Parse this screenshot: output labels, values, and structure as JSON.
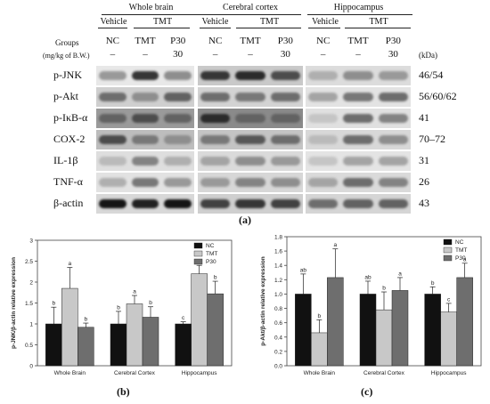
{
  "blot": {
    "regions": [
      "Whole brain",
      "Cerebral cortex",
      "Hippocampus"
    ],
    "vehicle_label": "Vehicle",
    "tmt_label": "TMT",
    "groups_label": "Groups",
    "dose_label": "(mg/kg of B.W.)",
    "lanes": [
      "NC",
      "TMT",
      "P30"
    ],
    "doses": [
      "–",
      "–",
      "30"
    ],
    "kda_label": "(kDa)",
    "proteins": [
      {
        "name": "p-JNK",
        "kda": "46/54"
      },
      {
        "name": "p-Akt",
        "kda": "56/60/62"
      },
      {
        "name": "p-IκB-α",
        "kda": "41"
      },
      {
        "name": "COX-2",
        "kda": "70–72"
      },
      {
        "name": "IL-1β",
        "kda": "31"
      },
      {
        "name": "TNF-α",
        "kda": "26"
      },
      {
        "name": "β-actin",
        "kda": "43"
      }
    ],
    "panel_label": "(a)"
  },
  "chart_data": [
    {
      "type": "bar",
      "panel_label": "(b)",
      "ylabel": "p-JNK/β-actin relative expression",
      "ylim": [
        0,
        3
      ],
      "yticks": [
        "0",
        "0.5",
        "1",
        "1.5",
        "2",
        "2.5",
        "3"
      ],
      "categories": [
        "Whole Brain",
        "Cerebral Cortex",
        "Hippocampus"
      ],
      "series": [
        {
          "name": "NC",
          "color": "#111111",
          "values": [
            1.0,
            1.0,
            1.0
          ],
          "errors": [
            0.4,
            0.3,
            0.05
          ],
          "letters": [
            "b",
            "b",
            "c"
          ]
        },
        {
          "name": "TMT",
          "color": "#c8c8c8",
          "values": [
            1.85,
            1.48,
            2.2
          ],
          "errors": [
            0.5,
            0.2,
            0.2
          ],
          "letters": [
            "a",
            "a",
            "a"
          ]
        },
        {
          "name": "P30",
          "color": "#6e6e6e",
          "values": [
            0.92,
            1.16,
            1.72
          ],
          "errors": [
            0.1,
            0.25,
            0.3
          ],
          "letters": [
            "b",
            "b",
            "b"
          ]
        }
      ],
      "legend": "top-right"
    },
    {
      "type": "bar",
      "panel_label": "(c)",
      "ylabel": "p-Akt/β-actin relative expression",
      "ylim": [
        0,
        1.8
      ],
      "yticks": [
        "0.0",
        "0.2",
        "0.4",
        "0.6",
        "0.8",
        "1.0",
        "1.2",
        "1.4",
        "1.6",
        "1.8"
      ],
      "categories": [
        "Whole Brain",
        "Cerebral Cortex",
        "Hippocampus"
      ],
      "series": [
        {
          "name": "NC",
          "color": "#111111",
          "values": [
            1.0,
            1.0,
            1.0
          ],
          "errors": [
            0.28,
            0.18,
            0.1
          ],
          "letters": [
            "ab",
            "ab",
            "b"
          ]
        },
        {
          "name": "TMT",
          "color": "#c8c8c8",
          "values": [
            0.46,
            0.78,
            0.75
          ],
          "errors": [
            0.18,
            0.25,
            0.12
          ],
          "letters": [
            "b",
            "b",
            "c"
          ]
        },
        {
          "name": "P30",
          "color": "#6e6e6e",
          "values": [
            1.23,
            1.05,
            1.23
          ],
          "errors": [
            0.4,
            0.18,
            0.2
          ],
          "letters": [
            "a",
            "a",
            "a"
          ]
        }
      ],
      "legend": "top-right"
    }
  ]
}
